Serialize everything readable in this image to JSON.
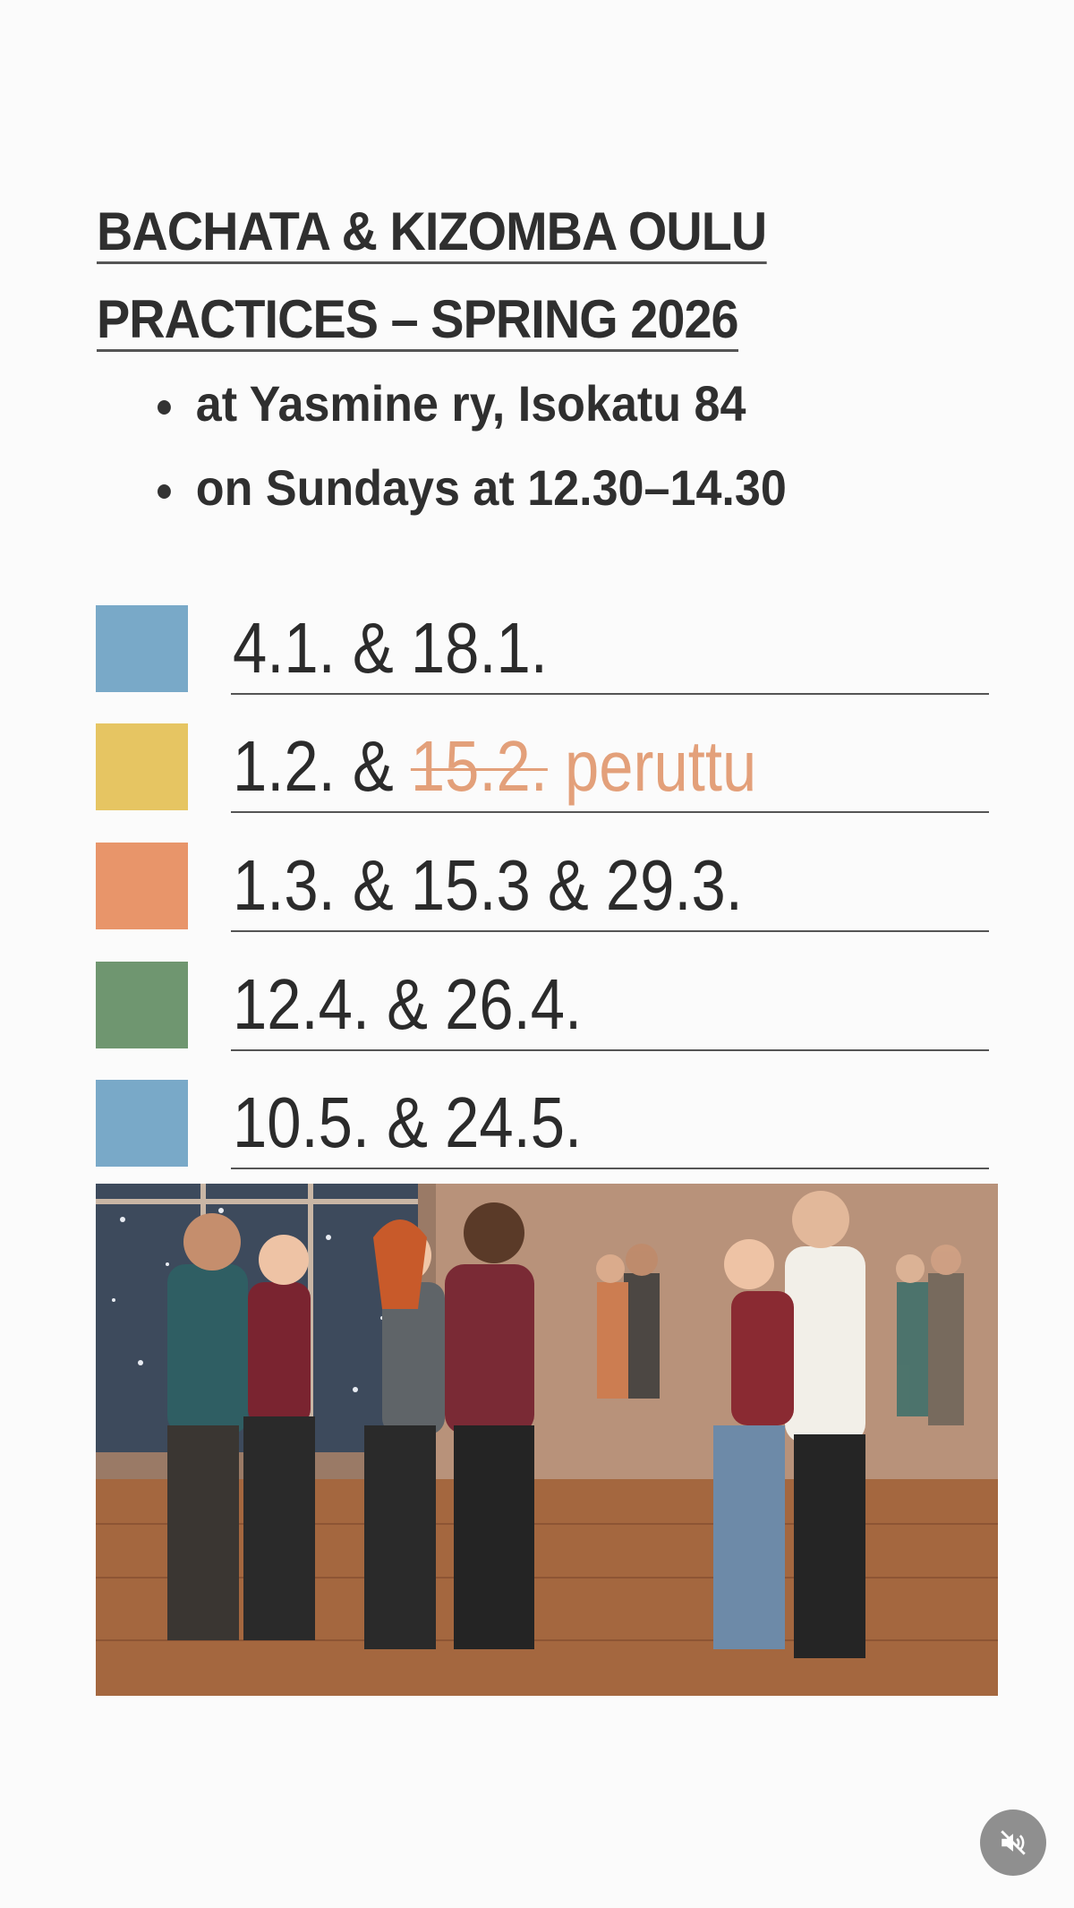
{
  "title": {
    "line1": "BACHATA & KIZOMBA OULU",
    "line2": "PRACTICES – SPRING 2026"
  },
  "details": [
    "at Yasmine ry, Isokatu 84",
    "on Sundays at 12.30–14.30"
  ],
  "schedule": [
    {
      "color": "#79a9c8",
      "text": "4.1. & 18.1."
    },
    {
      "color": "#e6c562",
      "text": "1.2. & ",
      "cancelled_date": "15.2.",
      "cancelled_note": "peruttu",
      "cancel_color": "#e3a07a"
    },
    {
      "color": "#e8956a",
      "text": "1.3. & 15.3 & 29.3."
    },
    {
      "color": "#6f9670",
      "text": "12.4. & 26.4."
    },
    {
      "color": "#79a9c8",
      "text": "10.5. & 24.5."
    }
  ],
  "illustration": "couples-dancing-illustration",
  "mute_button": {
    "icon": "speaker-muted-icon"
  }
}
